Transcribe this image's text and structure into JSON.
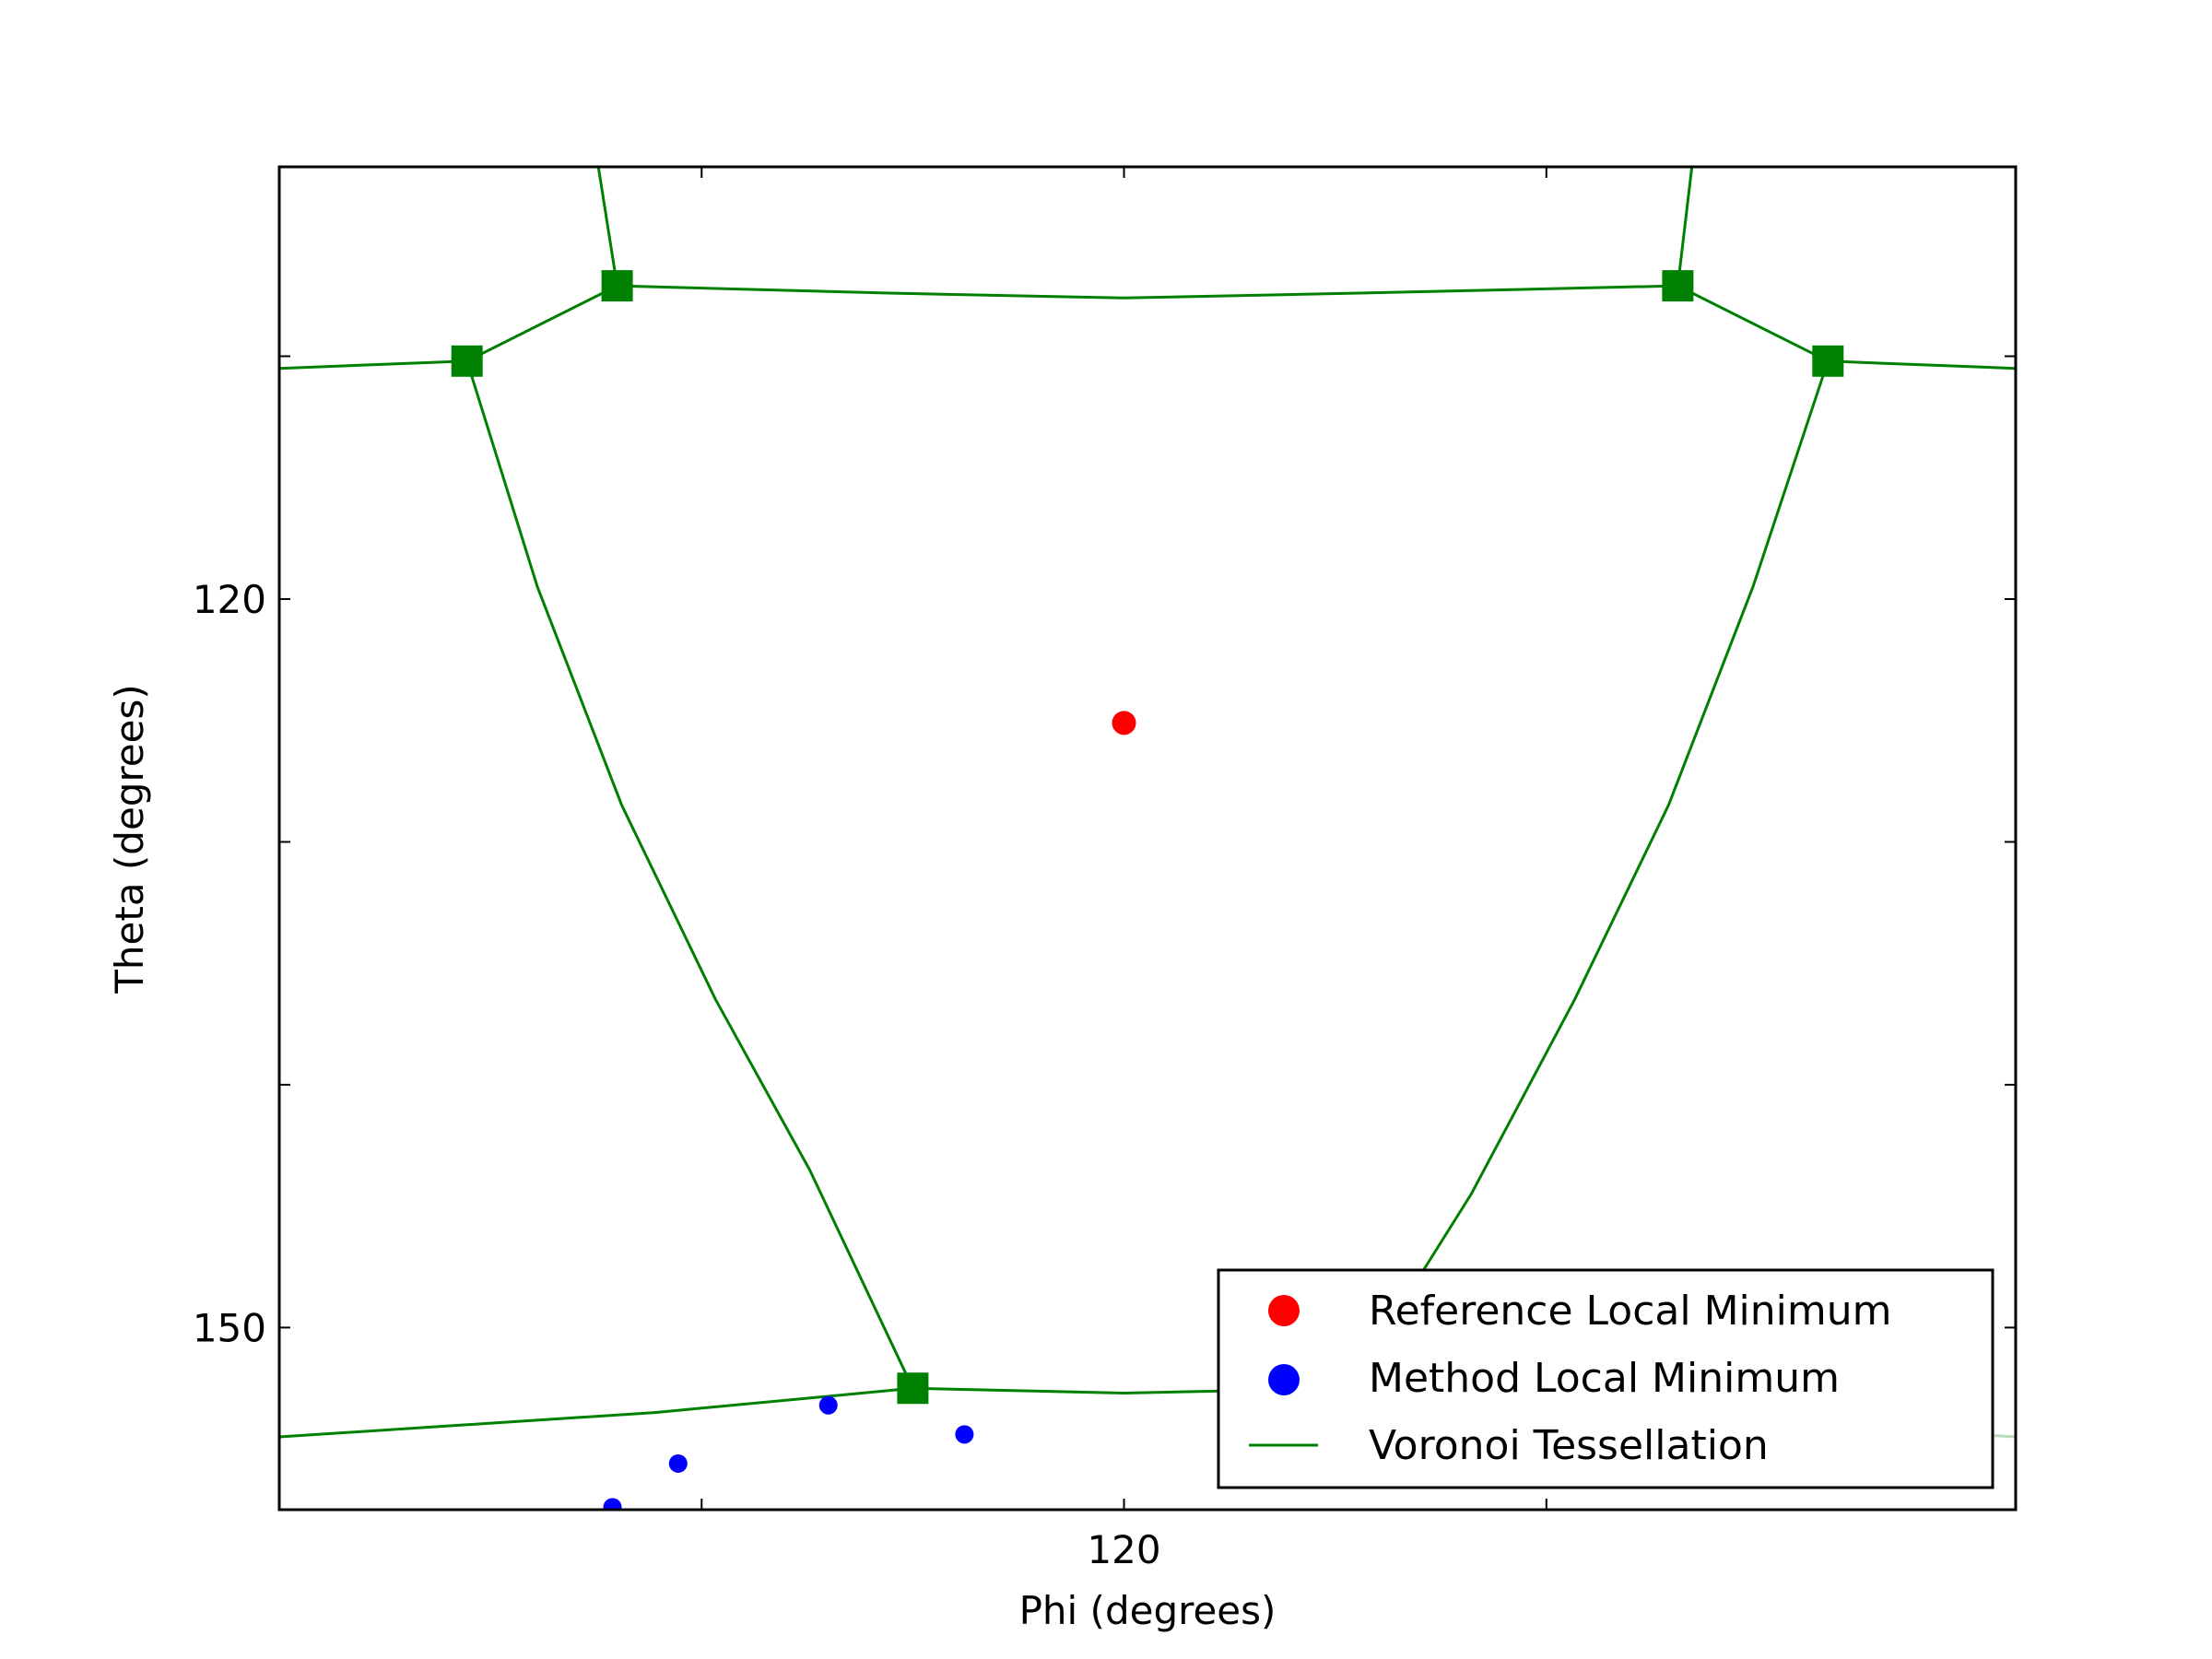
{
  "chart_data": {
    "type": "scatter",
    "title": "",
    "xlabel": "Phi (degrees)",
    "ylabel": "Theta (degrees)",
    "xlim": [
      102.0,
      139.0
    ],
    "ylim": [
      157.5,
      102.2
    ],
    "xticks": [
      111,
      120,
      129
    ],
    "xtick_labels": [
      "",
      "120",
      ""
    ],
    "yticks": [
      110,
      120,
      130,
      140,
      150
    ],
    "ytick_labels": [
      "",
      "120",
      "",
      "",
      "150"
    ],
    "grid": false,
    "legend_position": "lower-right",
    "series": [
      {
        "name": "Reference Local Minimum",
        "kind": "points",
        "color": "#ff0000",
        "points": [
          [
            120.0,
            125.1
          ]
        ]
      },
      {
        "name": "Method Local Minimum",
        "kind": "points",
        "color": "#0000ff",
        "points": [
          [
            109.1,
            157.4
          ],
          [
            110.5,
            155.6
          ],
          [
            113.7,
            153.2
          ],
          [
            116.6,
            154.4
          ]
        ]
      },
      {
        "name": "Voronoi Tessellation",
        "kind": "lines",
        "color": "#008000",
        "vertices": [
          [
            106.0,
            110.2
          ],
          [
            109.2,
            107.1
          ],
          [
            131.8,
            107.1
          ],
          [
            135.0,
            110.2
          ],
          [
            115.5,
            152.5
          ],
          [
            124.8,
            152.5
          ]
        ],
        "faded_vertices": [
          [
            124.8,
            152.5
          ]
        ],
        "segments": [
          [
            [
              108.8,
              102.2
            ],
            [
              109.2,
              107.1
            ]
          ],
          [
            [
              109.2,
              107.1
            ],
            [
              106.0,
              110.2
            ]
          ],
          [
            [
              106.0,
              110.2
            ],
            [
              102.0,
              110.5
            ]
          ],
          [
            [
              109.2,
              107.1
            ],
            [
              115.0,
              107.4
            ],
            [
              120.0,
              107.6
            ],
            [
              125.0,
              107.4
            ],
            [
              131.8,
              107.1
            ]
          ],
          [
            [
              131.8,
              107.1
            ],
            [
              132.1,
              102.2
            ]
          ],
          [
            [
              131.8,
              107.1
            ],
            [
              135.0,
              110.2
            ]
          ],
          [
            [
              135.0,
              110.2
            ],
            [
              139.0,
              110.5
            ]
          ],
          [
            [
              106.0,
              110.2
            ],
            [
              107.5,
              119.5
            ],
            [
              109.3,
              128.5
            ],
            [
              111.3,
              136.5
            ],
            [
              113.3,
              143.5
            ],
            [
              115.5,
              152.5
            ]
          ],
          [
            [
              115.5,
              152.5
            ],
            [
              120.0,
              152.7
            ],
            [
              124.8,
              152.5
            ]
          ],
          [
            [
              115.5,
              152.5
            ],
            [
              110.0,
              153.5
            ],
            [
              102.0,
              154.5
            ]
          ],
          [
            [
              135.0,
              110.2
            ],
            [
              133.4,
              119.5
            ],
            [
              131.6,
              128.5
            ],
            [
              129.6,
              136.5
            ],
            [
              127.4,
              144.5
            ],
            [
              124.8,
              152.5
            ]
          ]
        ],
        "faded_segments": [
          [
            [
              124.8,
              152.5
            ],
            [
              130.0,
              153.5
            ],
            [
              139.0,
              154.5
            ]
          ]
        ]
      }
    ]
  }
}
